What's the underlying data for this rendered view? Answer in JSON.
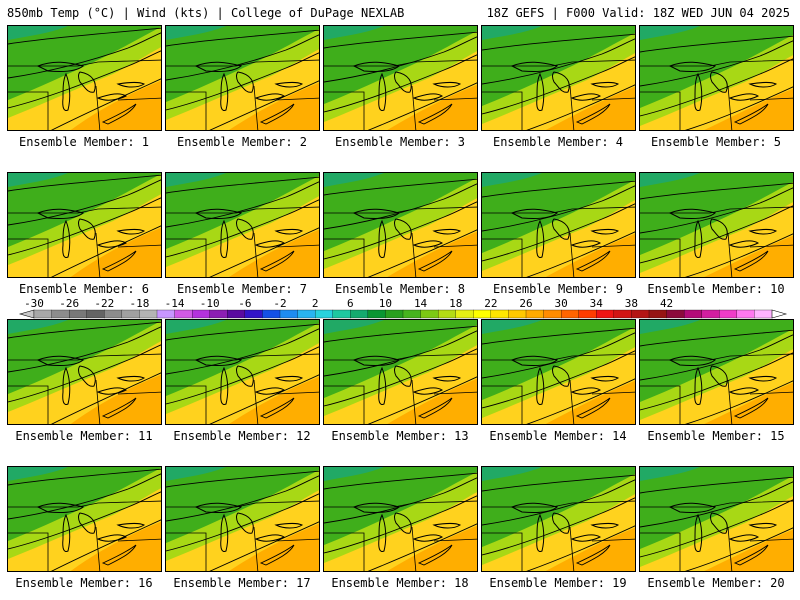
{
  "header": {
    "left": "850mb Temp (°C) | Wind (kts) | College of DuPage NEXLAB",
    "right": "18Z GEFS | F000 Valid: 18Z WED JUN 04 2025"
  },
  "colors": {
    "cold_fill": "#1aa878",
    "mid_fill": "#3fae1b",
    "warm_fill": "#a8d815",
    "hot_fill": "#ffd21e",
    "hottest_fill": "#ffae00",
    "contour": "#000000"
  },
  "members": [
    {
      "caption": "Ensemble Member: 1"
    },
    {
      "caption": "Ensemble Member: 2"
    },
    {
      "caption": "Ensemble Member: 3"
    },
    {
      "caption": "Ensemble Member: 4"
    },
    {
      "caption": "Ensemble Member: 5"
    },
    {
      "caption": "Ensemble Member: 6"
    },
    {
      "caption": "Ensemble Member: 7"
    },
    {
      "caption": "Ensemble Member: 8"
    },
    {
      "caption": "Ensemble Member: 9"
    },
    {
      "caption": "Ensemble Member: 10"
    },
    {
      "caption": "Ensemble Member: 11"
    },
    {
      "caption": "Ensemble Member: 12"
    },
    {
      "caption": "Ensemble Member: 13"
    },
    {
      "caption": "Ensemble Member: 14"
    },
    {
      "caption": "Ensemble Member: 15"
    },
    {
      "caption": "Ensemble Member: 16"
    },
    {
      "caption": "Ensemble Member: 17"
    },
    {
      "caption": "Ensemble Member: 18"
    },
    {
      "caption": "Ensemble Member: 19"
    },
    {
      "caption": "Ensemble Member: 20"
    }
  ],
  "colorbar": {
    "labels": [
      "-30",
      "-26",
      "-22",
      "-18",
      "-14",
      "-10",
      "-6",
      "-2",
      "2",
      "6",
      "10",
      "14",
      "18",
      "22",
      "26",
      "30",
      "34",
      "38",
      "42"
    ],
    "colors": [
      "#a8a8a8",
      "#8c8c8c",
      "#787878",
      "#646464",
      "#8c8c8c",
      "#a0a0a0",
      "#b4b4b4",
      "#c896ff",
      "#d25ae6",
      "#b432dc",
      "#8c1eb4",
      "#5a0aa0",
      "#3214c8",
      "#1450e6",
      "#1e8cf0",
      "#28b4f0",
      "#28d2dc",
      "#1ec8a0",
      "#14aa6e",
      "#0a9632",
      "#28a01e",
      "#46b41e",
      "#7cc814",
      "#b4dc14",
      "#e6f014",
      "#ffff00",
      "#ffe600",
      "#ffc800",
      "#ffaa00",
      "#ff8c00",
      "#ff6400",
      "#ff3c00",
      "#f01414",
      "#d21414",
      "#b41414",
      "#961414",
      "#8c0a3c",
      "#b40a78",
      "#d21ea0",
      "#f03cc8",
      "#ff78f0",
      "#ffb4ff"
    ]
  }
}
